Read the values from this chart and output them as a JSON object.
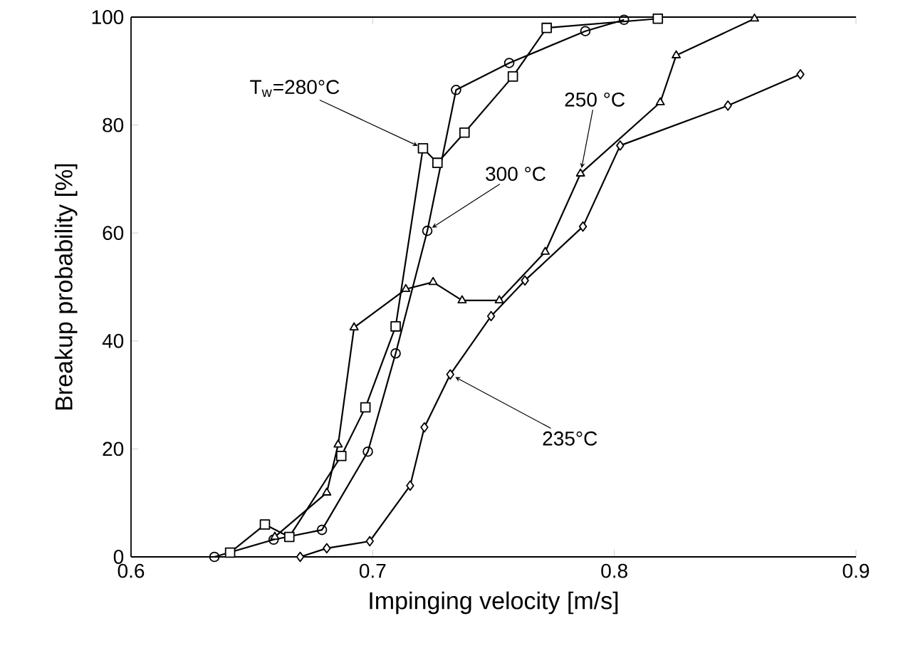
{
  "chart_data": {
    "type": "line",
    "xlabel": "Impinging velocity  [m/s]",
    "ylabel": "Breakup probability  [%]",
    "xlim": [
      0.6,
      0.9
    ],
    "ylim": [
      0,
      100
    ],
    "xticks": [
      0.6,
      0.7,
      0.8,
      0.9
    ],
    "yticks": [
      0,
      20,
      40,
      60,
      80,
      100
    ],
    "series": [
      {
        "marker": "square",
        "color": "#000000",
        "x": [
          0.641,
          0.6554,
          0.6655,
          0.687,
          0.697,
          0.7095,
          0.7208,
          0.7268,
          0.738,
          0.758,
          0.772,
          0.818
        ],
        "values": [
          0.8,
          6,
          3.7,
          18.7,
          27.7,
          42.7,
          75.7,
          73,
          78.6,
          89,
          98,
          99.7
        ]
      },
      {
        "marker": "circle",
        "color": "#000000",
        "x": [
          0.6345,
          0.659,
          0.679,
          0.698,
          0.7095,
          0.7226,
          0.7345,
          0.7565,
          0.788,
          0.804
        ],
        "values": [
          0,
          3.2,
          5,
          19.5,
          37.7,
          60.4,
          86.5,
          91.5,
          97.4,
          99.5
        ]
      },
      {
        "marker": "triangle",
        "color": "#000000",
        "x": [
          0.6595,
          0.681,
          0.6857,
          0.6923,
          0.7137,
          0.725,
          0.737,
          0.7524,
          0.7714,
          0.786,
          0.819,
          0.8256,
          0.858
        ],
        "values": [
          3.7,
          11.9,
          20.8,
          42.5,
          49.6,
          50.9,
          47.5,
          47.5,
          56.5,
          71,
          84.2,
          92.9,
          99.7
        ]
      },
      {
        "marker": "diamond",
        "color": "#000000",
        "x": [
          0.67,
          0.681,
          0.6988,
          0.7155,
          0.7214,
          0.7321,
          0.749,
          0.763,
          0.787,
          0.8024,
          0.847,
          0.877
        ],
        "values": [
          0,
          1.6,
          2.9,
          13.2,
          24,
          33.8,
          44.6,
          51.2,
          61.2,
          76.2,
          83.6,
          89.4
        ]
      }
    ],
    "annotations": [
      {
        "text": "T$_{w}$=280°C",
        "x": 0.7208,
        "y": 75.7
      },
      {
        "text": "300 °C",
        "x": 0.7226,
        "y": 60.4
      },
      {
        "text": "250 °C",
        "x": 0.786,
        "y": 71
      },
      {
        "text": "235°C",
        "x": 0.7321,
        "y": 33.8
      }
    ]
  }
}
